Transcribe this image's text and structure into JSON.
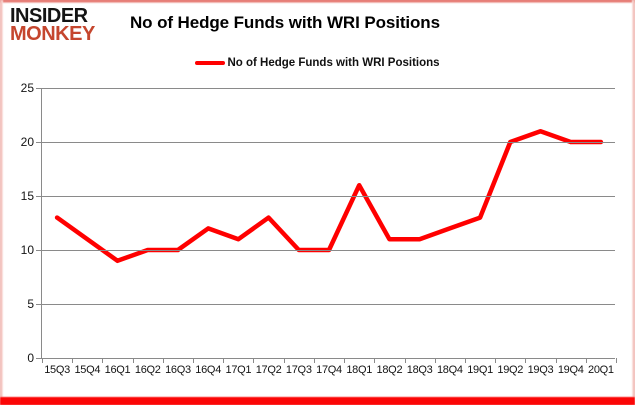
{
  "logo": {
    "line1": "INSIDER",
    "line2": "MONKEY"
  },
  "header": {
    "title": "No of Hedge Funds with WRI Positions"
  },
  "legend": {
    "label": "No of Hedge Funds with WRI Positions"
  },
  "chart_data": {
    "type": "line",
    "title": "No of Hedge Funds with WRI Positions",
    "categories": [
      "15Q3",
      "15Q4",
      "16Q1",
      "16Q2",
      "16Q3",
      "16Q4",
      "17Q1",
      "17Q2",
      "17Q3",
      "17Q4",
      "18Q1",
      "18Q2",
      "18Q3",
      "18Q4",
      "19Q1",
      "19Q2",
      "19Q3",
      "19Q4",
      "20Q1"
    ],
    "series": [
      {
        "name": "No of Hedge Funds with WRI Positions",
        "color": "#ff0000",
        "values": [
          13,
          11,
          9,
          10,
          10,
          12,
          11,
          13,
          10,
          10,
          16,
          11,
          11,
          12,
          13,
          20,
          21,
          20,
          20
        ]
      }
    ],
    "xlabel": "",
    "ylabel": "",
    "ylim": [
      0,
      25
    ],
    "yticks": [
      0,
      5,
      10,
      15,
      20,
      25
    ],
    "grid": true,
    "legend_position": "top-center"
  },
  "colors": {
    "series_red": "#ff0000",
    "gridline": "#8a8a8a",
    "axis": "#8a8a8a",
    "tick_label": "#141414",
    "logo_black": "#141414",
    "logo_red": "#c5462e",
    "frame_red": "#fb0606"
  }
}
